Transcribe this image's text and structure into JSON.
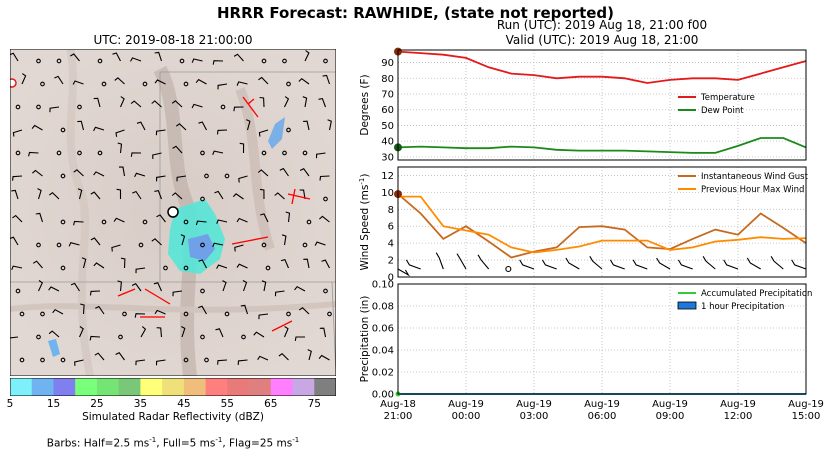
{
  "figure": {
    "title": "HRRR Forecast: RAWHIDE, (state not reported)",
    "map_title": "UTC: 2019-08-18 21:00:00",
    "run_line": "Run (UTC): 2019 Aug 18, 21:00 f00",
    "valid_line": "Valid (UTC): 2019 Aug 18, 21:00",
    "colorbar_label": "Simulated Radar Reflectivity (dBZ)",
    "barbs_prefix": "Barbs: Half=2.5 ms",
    "barbs_mid1": ", Full=5 ms",
    "barbs_mid2": ", Flag=25 ms",
    "barbs_sup": "-1"
  },
  "colors": {
    "temperature": "#e31a1c",
    "dew_point": "#1a8a1a",
    "gust": "#c86a1e",
    "max_wind": "#ff8c00",
    "accum_precip": "#33cc33",
    "hourly_precip": "#1f78d8",
    "marker": "#8a2a00"
  },
  "colorbar": {
    "ticks": [
      "5",
      "15",
      "25",
      "35",
      "45",
      "55",
      "65",
      "75"
    ],
    "colors": [
      "#7ef0fa",
      "#6fb4f0",
      "#7f7ff0",
      "#7aff7a",
      "#74e474",
      "#78c878",
      "#ffff7a",
      "#f0e07a",
      "#f0be7a",
      "#ff7f7f",
      "#e87a7a",
      "#df7f7f",
      "#ff7fff",
      "#c8a8e4",
      "#7f7f7f"
    ]
  },
  "chart_data": [
    {
      "type": "line",
      "ylabel": "Degrees (F)",
      "ylim": [
        28,
        98
      ],
      "yticks": [
        "30",
        "40",
        "50",
        "60",
        "70",
        "80",
        "90"
      ],
      "x": [
        0,
        1,
        2,
        3,
        4,
        5,
        6,
        7,
        8,
        9,
        10,
        11,
        12,
        13,
        14,
        15,
        16,
        17,
        18
      ],
      "legend": "right",
      "grid": true,
      "series": [
        {
          "name": "Temperature",
          "values": [
            97,
            96,
            95,
            93,
            87,
            83,
            82,
            80,
            81,
            81,
            80,
            77,
            79,
            80,
            80,
            79,
            83,
            87,
            91
          ]
        },
        {
          "name": "Dew Point",
          "values": [
            36,
            36.5,
            36,
            35.5,
            35.5,
            36.5,
            36,
            34.5,
            34,
            34,
            34,
            33.5,
            33,
            32.5,
            32.5,
            37,
            42,
            42,
            36
          ]
        }
      ]
    },
    {
      "type": "line",
      "ylabel_text": "Wind Speed (ms",
      "ylabel_sup": "-1",
      "ylim": [
        0,
        13
      ],
      "yticks": [
        "0",
        "2",
        "4",
        "6",
        "8",
        "10",
        "12"
      ],
      "x": [
        0,
        1,
        2,
        3,
        4,
        5,
        6,
        7,
        8,
        9,
        10,
        11,
        12,
        13,
        14,
        15,
        16,
        17,
        18
      ],
      "legend": "top-right",
      "grid": true,
      "series": [
        {
          "name": "Instantaneous Wind Gust",
          "values": [
            9.8,
            7.5,
            4.5,
            6.0,
            4.2,
            2.3,
            3.0,
            3.5,
            5.9,
            6.0,
            5.6,
            3.5,
            3.3,
            4.5,
            5.6,
            5.0,
            7.5,
            5.8,
            4.0
          ]
        },
        {
          "name": "Previous Hour Max Wind",
          "values": [
            9.5,
            9.5,
            6.0,
            5.5,
            5.0,
            3.5,
            2.9,
            3.2,
            3.6,
            4.3,
            4.3,
            4.3,
            3.2,
            3.5,
            4.2,
            4.4,
            4.7,
            4.5,
            4.6
          ]
        }
      ]
    },
    {
      "type": "bar",
      "ylabel": "Precipitation (in)",
      "ylim": [
        0,
        0.1
      ],
      "yticks": [
        "0.00",
        "0.02",
        "0.04",
        "0.06",
        "0.08",
        "0.10"
      ],
      "xticks": [
        {
          "day": "Aug-18",
          "time": "21:00"
        },
        {
          "day": "Aug-19",
          "time": "00:00"
        },
        {
          "day": "Aug-19",
          "time": "03:00"
        },
        {
          "day": "Aug-19",
          "time": "06:00"
        },
        {
          "day": "Aug-19",
          "time": "09:00"
        },
        {
          "day": "Aug-19",
          "time": "12:00"
        },
        {
          "day": "Aug-19",
          "time": "15:00"
        }
      ],
      "legend": "top-right",
      "grid": true,
      "series": [
        {
          "name": "Accumulated Precipitation",
          "values": [
            0,
            0,
            0,
            0,
            0,
            0,
            0,
            0,
            0,
            0,
            0,
            0,
            0,
            0,
            0,
            0,
            0,
            0,
            0
          ]
        },
        {
          "name": "1 hour Precipitation",
          "values": [
            0,
            0,
            0,
            0,
            0,
            0,
            0,
            0,
            0,
            0,
            0,
            0,
            0,
            0,
            0,
            0,
            0,
            0,
            0
          ]
        }
      ]
    }
  ]
}
